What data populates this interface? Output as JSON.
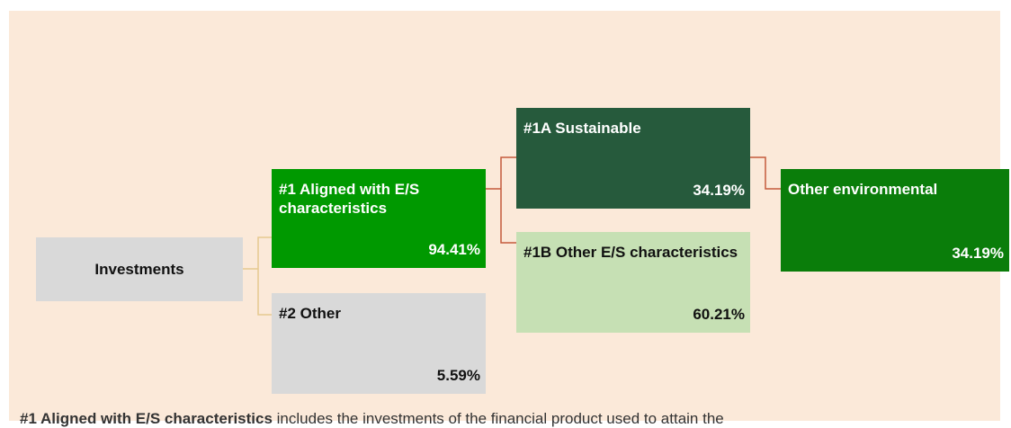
{
  "nodes": [
    {
      "label": "Investments"
    },
    {
      "label": "#1 Aligned with E/S characteristics",
      "value": "94.41%"
    },
    {
      "label": "#2 Other",
      "value": "5.59%"
    },
    {
      "label": "#1A Sustainable",
      "value": "34.19%"
    },
    {
      "label": "#1B Other E/S characteristics",
      "value": "60.21%"
    },
    {
      "label": "Other environmental",
      "value": "34.19%"
    }
  ],
  "footnote": {
    "term": "#1 Aligned with E/S characteristics",
    "text": " includes the investments of the financial product used to attain the"
  }
}
